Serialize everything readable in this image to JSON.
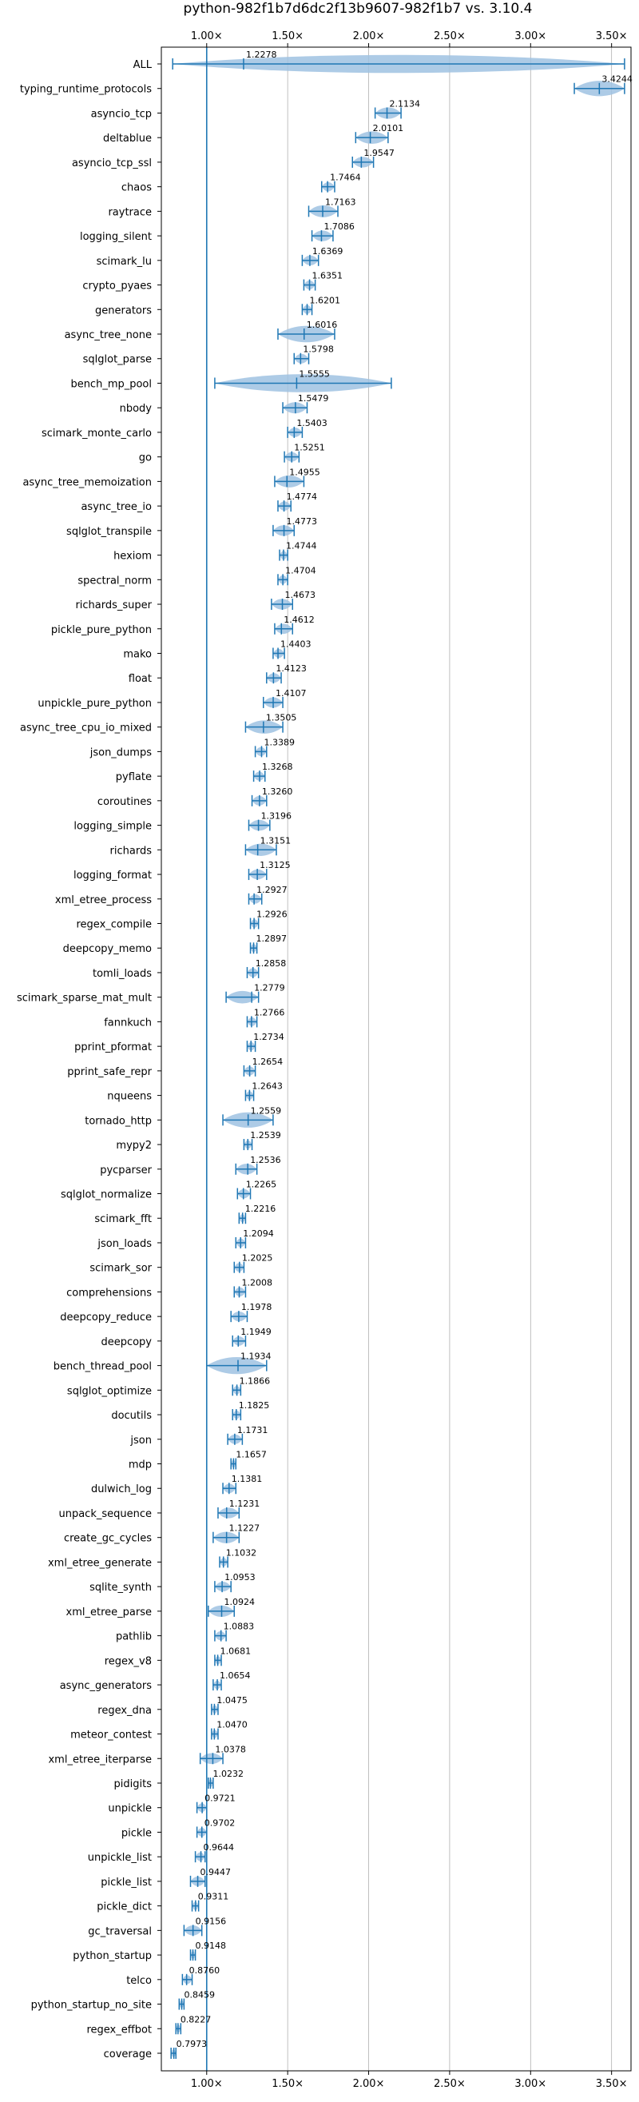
{
  "chart_data": {
    "type": "violin",
    "title": "python-982f1b7d6dc2f13b9607-982f1b7d6dc2f13b9607-982f1b7 vs. 3.10.4",
    "title_display": "python-982f1b7d6dc2f13b9607-982f1b7 vs. 3.10.4",
    "xlabel": "",
    "ylabel": "",
    "xlim": [
      0.72,
      3.62
    ],
    "xticks": [
      {
        "value": 1.0,
        "label": "1.00×"
      },
      {
        "value": 1.5,
        "label": "1.50×"
      },
      {
        "value": 2.0,
        "label": "2.00×"
      },
      {
        "value": 2.5,
        "label": "2.50×"
      },
      {
        "value": 3.0,
        "label": "3.00×"
      },
      {
        "value": 3.5,
        "label": "3.50×"
      }
    ],
    "reference_line": 1.0,
    "grid": true,
    "colors": {
      "violin": "#9fc2e2",
      "line": "#1f77b4",
      "grid": "#b0b0b0"
    },
    "benchmarks": [
      {
        "name": "ALL",
        "value": 1.2278,
        "min": 0.79,
        "max": 3.58
      },
      {
        "name": "typing_runtime_protocols",
        "value": 3.4244,
        "min": 3.27,
        "max": 3.58
      },
      {
        "name": "asyncio_tcp",
        "value": 2.1134,
        "min": 2.04,
        "max": 2.2
      },
      {
        "name": "deltablue",
        "value": 2.0101,
        "min": 1.92,
        "max": 2.12
      },
      {
        "name": "asyncio_tcp_ssl",
        "value": 1.9547,
        "min": 1.9,
        "max": 2.03
      },
      {
        "name": "chaos",
        "value": 1.7464,
        "min": 1.71,
        "max": 1.79
      },
      {
        "name": "raytrace",
        "value": 1.7163,
        "min": 1.63,
        "max": 1.81
      },
      {
        "name": "logging_silent",
        "value": 1.7086,
        "min": 1.65,
        "max": 1.78
      },
      {
        "name": "scimark_lu",
        "value": 1.6369,
        "min": 1.59,
        "max": 1.69
      },
      {
        "name": "crypto_pyaes",
        "value": 1.6351,
        "min": 1.6,
        "max": 1.67
      },
      {
        "name": "generators",
        "value": 1.6201,
        "min": 1.59,
        "max": 1.65
      },
      {
        "name": "async_tree_none",
        "value": 1.6016,
        "min": 1.44,
        "max": 1.79
      },
      {
        "name": "sqlglot_parse",
        "value": 1.5798,
        "min": 1.54,
        "max": 1.63
      },
      {
        "name": "bench_mp_pool",
        "value": 1.5555,
        "min": 1.05,
        "max": 2.14
      },
      {
        "name": "nbody",
        "value": 1.5479,
        "min": 1.47,
        "max": 1.62
      },
      {
        "name": "scimark_monte_carlo",
        "value": 1.5403,
        "min": 1.5,
        "max": 1.59
      },
      {
        "name": "go",
        "value": 1.5251,
        "min": 1.48,
        "max": 1.57
      },
      {
        "name": "async_tree_memoization",
        "value": 1.4955,
        "min": 1.42,
        "max": 1.6
      },
      {
        "name": "async_tree_io",
        "value": 1.4774,
        "min": 1.44,
        "max": 1.52
      },
      {
        "name": "sqlglot_transpile",
        "value": 1.4773,
        "min": 1.41,
        "max": 1.54
      },
      {
        "name": "hexiom",
        "value": 1.4744,
        "min": 1.45,
        "max": 1.5
      },
      {
        "name": "spectral_norm",
        "value": 1.4704,
        "min": 1.44,
        "max": 1.5
      },
      {
        "name": "richards_super",
        "value": 1.4673,
        "min": 1.4,
        "max": 1.53
      },
      {
        "name": "pickle_pure_python",
        "value": 1.4612,
        "min": 1.42,
        "max": 1.53
      },
      {
        "name": "mako",
        "value": 1.4403,
        "min": 1.41,
        "max": 1.48
      },
      {
        "name": "float",
        "value": 1.4123,
        "min": 1.37,
        "max": 1.46
      },
      {
        "name": "unpickle_pure_python",
        "value": 1.4107,
        "min": 1.35,
        "max": 1.47
      },
      {
        "name": "async_tree_cpu_io_mixed",
        "value": 1.3505,
        "min": 1.24,
        "max": 1.47
      },
      {
        "name": "json_dumps",
        "value": 1.3389,
        "min": 1.3,
        "max": 1.37
      },
      {
        "name": "pyflate",
        "value": 1.3268,
        "min": 1.29,
        "max": 1.36
      },
      {
        "name": "coroutines",
        "value": 1.326,
        "min": 1.28,
        "max": 1.37
      },
      {
        "name": "logging_simple",
        "value": 1.3196,
        "min": 1.26,
        "max": 1.39
      },
      {
        "name": "richards",
        "value": 1.3151,
        "min": 1.24,
        "max": 1.43
      },
      {
        "name": "logging_format",
        "value": 1.3125,
        "min": 1.26,
        "max": 1.37
      },
      {
        "name": "xml_etree_process",
        "value": 1.2927,
        "min": 1.26,
        "max": 1.34
      },
      {
        "name": "regex_compile",
        "value": 1.2926,
        "min": 1.27,
        "max": 1.32
      },
      {
        "name": "deepcopy_memo",
        "value": 1.2897,
        "min": 1.27,
        "max": 1.31
      },
      {
        "name": "tomli_loads",
        "value": 1.2858,
        "min": 1.25,
        "max": 1.32
      },
      {
        "name": "scimark_sparse_mat_mult",
        "value": 1.2779,
        "min": 1.12,
        "max": 1.32
      },
      {
        "name": "fannkuch",
        "value": 1.2766,
        "min": 1.25,
        "max": 1.31
      },
      {
        "name": "pprint_pformat",
        "value": 1.2734,
        "min": 1.25,
        "max": 1.3
      },
      {
        "name": "pprint_safe_repr",
        "value": 1.2654,
        "min": 1.23,
        "max": 1.3
      },
      {
        "name": "nqueens",
        "value": 1.2643,
        "min": 1.24,
        "max": 1.29
      },
      {
        "name": "tornado_http",
        "value": 1.2559,
        "min": 1.1,
        "max": 1.41
      },
      {
        "name": "mypy2",
        "value": 1.2539,
        "min": 1.23,
        "max": 1.28
      },
      {
        "name": "pycparser",
        "value": 1.2536,
        "min": 1.18,
        "max": 1.31
      },
      {
        "name": "sqlglot_normalize",
        "value": 1.2265,
        "min": 1.19,
        "max": 1.27
      },
      {
        "name": "scimark_fft",
        "value": 1.2216,
        "min": 1.2,
        "max": 1.24
      },
      {
        "name": "json_loads",
        "value": 1.2094,
        "min": 1.18,
        "max": 1.24
      },
      {
        "name": "scimark_sor",
        "value": 1.2025,
        "min": 1.17,
        "max": 1.23
      },
      {
        "name": "comprehensions",
        "value": 1.2008,
        "min": 1.17,
        "max": 1.24
      },
      {
        "name": "deepcopy_reduce",
        "value": 1.1978,
        "min": 1.15,
        "max": 1.25
      },
      {
        "name": "deepcopy",
        "value": 1.1949,
        "min": 1.16,
        "max": 1.24
      },
      {
        "name": "bench_thread_pool",
        "value": 1.1934,
        "min": 1.0,
        "max": 1.37
      },
      {
        "name": "sqlglot_optimize",
        "value": 1.1866,
        "min": 1.16,
        "max": 1.21
      },
      {
        "name": "docutils",
        "value": 1.1825,
        "min": 1.16,
        "max": 1.21
      },
      {
        "name": "json",
        "value": 1.1731,
        "min": 1.13,
        "max": 1.22
      },
      {
        "name": "mdp",
        "value": 1.1657,
        "min": 1.15,
        "max": 1.18
      },
      {
        "name": "dulwich_log",
        "value": 1.1381,
        "min": 1.1,
        "max": 1.18
      },
      {
        "name": "unpack_sequence",
        "value": 1.1231,
        "min": 1.07,
        "max": 1.2
      },
      {
        "name": "create_gc_cycles",
        "value": 1.1227,
        "min": 1.04,
        "max": 1.2
      },
      {
        "name": "xml_etree_generate",
        "value": 1.1032,
        "min": 1.08,
        "max": 1.13
      },
      {
        "name": "sqlite_synth",
        "value": 1.0953,
        "min": 1.05,
        "max": 1.15
      },
      {
        "name": "xml_etree_parse",
        "value": 1.0924,
        "min": 1.01,
        "max": 1.17
      },
      {
        "name": "pathlib",
        "value": 1.0883,
        "min": 1.05,
        "max": 1.12
      },
      {
        "name": "regex_v8",
        "value": 1.0681,
        "min": 1.05,
        "max": 1.09
      },
      {
        "name": "async_generators",
        "value": 1.0654,
        "min": 1.04,
        "max": 1.09
      },
      {
        "name": "regex_dna",
        "value": 1.0475,
        "min": 1.03,
        "max": 1.07
      },
      {
        "name": "meteor_contest",
        "value": 1.047,
        "min": 1.03,
        "max": 1.07
      },
      {
        "name": "xml_etree_iterparse",
        "value": 1.0378,
        "min": 0.96,
        "max": 1.1
      },
      {
        "name": "pidigits",
        "value": 1.0232,
        "min": 1.01,
        "max": 1.04
      },
      {
        "name": "unpickle",
        "value": 0.9721,
        "min": 0.94,
        "max": 1.0
      },
      {
        "name": "pickle",
        "value": 0.9702,
        "min": 0.94,
        "max": 1.0
      },
      {
        "name": "unpickle_list",
        "value": 0.9644,
        "min": 0.93,
        "max": 0.99
      },
      {
        "name": "pickle_list",
        "value": 0.9447,
        "min": 0.9,
        "max": 0.99
      },
      {
        "name": "pickle_dict",
        "value": 0.9311,
        "min": 0.91,
        "max": 0.95
      },
      {
        "name": "gc_traversal",
        "value": 0.9156,
        "min": 0.86,
        "max": 0.97
      },
      {
        "name": "python_startup",
        "value": 0.9148,
        "min": 0.9,
        "max": 0.93
      },
      {
        "name": "telco",
        "value": 0.876,
        "min": 0.85,
        "max": 0.91
      },
      {
        "name": "python_startup_no_site",
        "value": 0.8459,
        "min": 0.83,
        "max": 0.86
      },
      {
        "name": "regex_effbot",
        "value": 0.8227,
        "min": 0.81,
        "max": 0.84
      },
      {
        "name": "coverage",
        "value": 0.7973,
        "min": 0.78,
        "max": 0.81
      }
    ]
  }
}
